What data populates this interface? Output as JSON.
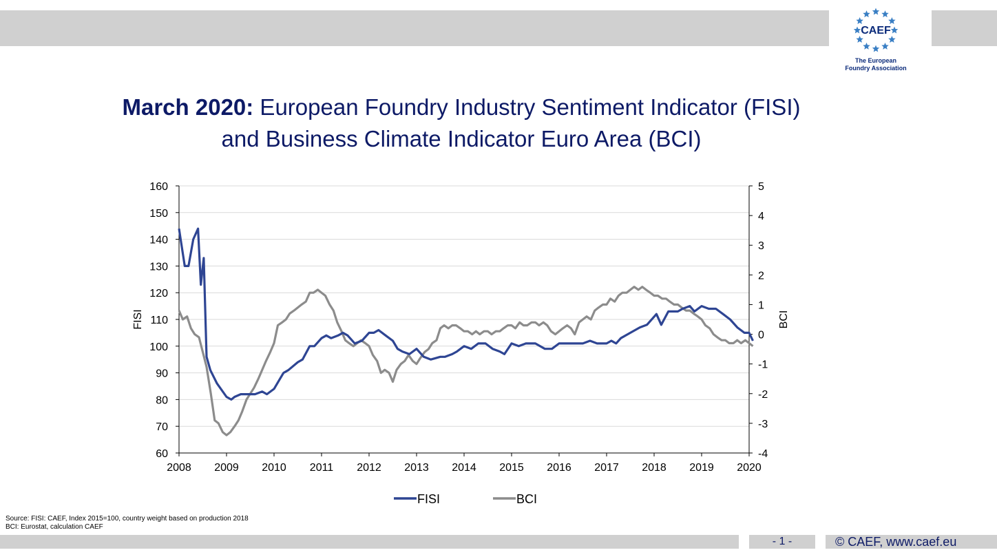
{
  "header": {
    "logo_text": "CAEF",
    "logo_subtitle_line1": "The European",
    "logo_subtitle_line2": "Foundry Association"
  },
  "title": {
    "bold": "March 2020:",
    "rest_line1": " European Foundry Industry Sentiment Indicator (FISI)",
    "line2": "and Business Climate Indicator Euro Area (BCI)"
  },
  "footer": {
    "source_line1": "Source: FISI: CAEF, Index 2015=100, country weight based on production 2018",
    "source_line2": "BCI: Eurostat, calculation CAEF",
    "page": "- 1 -",
    "copyright": "© CAEF, www.caef.eu"
  },
  "colors": {
    "fisi": "#2e4593",
    "bci": "#8c8c8c",
    "title": "#0d1a66",
    "bar": "#d0d0d0"
  },
  "chart_data": {
    "type": "line",
    "ylabel": "FISI",
    "y2label": "BCI",
    "ylim": [
      60,
      160
    ],
    "y2lim": [
      -4,
      5
    ],
    "xlim": [
      2008,
      2020
    ],
    "yticks": [
      "60",
      "70",
      "80",
      "90",
      "100",
      "110",
      "120",
      "130",
      "140",
      "150",
      "160"
    ],
    "y2ticks": [
      "-4",
      "-3",
      "-2",
      "-1",
      "0",
      "1",
      "2",
      "3",
      "4",
      "5"
    ],
    "xticks": [
      "2008",
      "2009",
      "2010",
      "2011",
      "2012",
      "2013",
      "2014",
      "2015",
      "2016",
      "2017",
      "2018",
      "2019",
      "2020"
    ],
    "grid": "horizontal",
    "legend": "bottom",
    "series": [
      {
        "name": "FISI",
        "axis": "left",
        "x": [
          2008.0,
          2008.12,
          2008.2,
          2008.3,
          2008.4,
          2008.46,
          2008.52,
          2008.58,
          2008.66,
          2008.8,
          2009.0,
          2009.1,
          2009.17,
          2009.3,
          2009.5,
          2009.6,
          2009.75,
          2009.85,
          2010.0,
          2010.1,
          2010.2,
          2010.3,
          2010.5,
          2010.6,
          2010.75,
          2010.85,
          2011.0,
          2011.1,
          2011.2,
          2011.35,
          2011.45,
          2011.55,
          2011.7,
          2011.85,
          2012.0,
          2012.1,
          2012.2,
          2012.35,
          2012.5,
          2012.6,
          2012.7,
          2012.85,
          2013.0,
          2013.15,
          2013.3,
          2013.5,
          2013.6,
          2013.75,
          2013.85,
          2014.0,
          2014.15,
          2014.3,
          2014.45,
          2014.6,
          2014.75,
          2014.85,
          2015.0,
          2015.15,
          2015.3,
          2015.5,
          2015.7,
          2015.85,
          2016.0,
          2016.15,
          2016.3,
          2016.5,
          2016.65,
          2016.8,
          2017.0,
          2017.1,
          2017.2,
          2017.3,
          2017.5,
          2017.7,
          2017.85,
          2018.0,
          2018.05,
          2018.15,
          2018.3,
          2018.5,
          2018.6,
          2018.75,
          2018.85,
          2019.0,
          2019.15,
          2019.3,
          2019.45,
          2019.6,
          2019.75,
          2019.9,
          2020.0,
          2020.08
        ],
        "values": [
          144,
          130,
          130,
          140,
          144,
          123,
          133,
          96,
          91,
          86,
          81,
          80,
          81,
          82,
          82,
          82,
          83,
          82,
          84,
          87,
          90,
          91,
          94,
          95,
          100,
          100,
          103,
          104,
          103,
          104,
          105,
          104,
          101,
          102,
          105,
          105,
          106,
          104,
          102,
          99,
          98,
          97,
          99,
          96,
          95,
          96,
          96,
          97,
          98,
          100,
          99,
          101,
          101,
          99,
          98,
          97,
          101,
          100,
          101,
          101,
          99,
          99,
          101,
          101,
          101,
          101,
          102,
          101,
          101,
          102,
          101,
          103,
          105,
          107,
          108,
          111,
          112,
          108,
          113,
          113,
          114,
          115,
          113,
          115,
          114,
          114,
          112,
          110,
          107,
          105,
          105,
          102
        ]
      },
      {
        "name": "BCI",
        "axis": "right",
        "x": [
          2008.0,
          2008.08,
          2008.17,
          2008.25,
          2008.33,
          2008.42,
          2008.5,
          2008.58,
          2008.67,
          2008.75,
          2008.83,
          2008.92,
          2009.0,
          2009.08,
          2009.17,
          2009.25,
          2009.33,
          2009.42,
          2009.5,
          2009.58,
          2009.67,
          2009.75,
          2009.83,
          2009.92,
          2010.0,
          2010.08,
          2010.17,
          2010.25,
          2010.33,
          2010.42,
          2010.5,
          2010.58,
          2010.67,
          2010.75,
          2010.83,
          2010.92,
          2011.0,
          2011.08,
          2011.17,
          2011.25,
          2011.33,
          2011.42,
          2011.5,
          2011.58,
          2011.67,
          2011.75,
          2011.83,
          2011.92,
          2012.0,
          2012.08,
          2012.17,
          2012.25,
          2012.33,
          2012.42,
          2012.5,
          2012.58,
          2012.67,
          2012.75,
          2012.83,
          2012.92,
          2013.0,
          2013.08,
          2013.17,
          2013.25,
          2013.33,
          2013.42,
          2013.5,
          2013.58,
          2013.67,
          2013.75,
          2013.83,
          2013.92,
          2014.0,
          2014.08,
          2014.17,
          2014.25,
          2014.33,
          2014.42,
          2014.5,
          2014.58,
          2014.67,
          2014.75,
          2014.83,
          2014.92,
          2015.0,
          2015.08,
          2015.17,
          2015.25,
          2015.33,
          2015.42,
          2015.5,
          2015.58,
          2015.67,
          2015.75,
          2015.83,
          2015.92,
          2016.0,
          2016.08,
          2016.17,
          2016.25,
          2016.33,
          2016.42,
          2016.5,
          2016.58,
          2016.67,
          2016.75,
          2016.83,
          2016.92,
          2017.0,
          2017.08,
          2017.17,
          2017.25,
          2017.33,
          2017.42,
          2017.5,
          2017.58,
          2017.67,
          2017.75,
          2017.83,
          2017.92,
          2018.0,
          2018.08,
          2018.17,
          2018.25,
          2018.33,
          2018.42,
          2018.5,
          2018.58,
          2018.67,
          2018.75,
          2018.83,
          2018.92,
          2019.0,
          2019.08,
          2019.17,
          2019.25,
          2019.33,
          2019.42,
          2019.5,
          2019.58,
          2019.67,
          2019.75,
          2019.83,
          2019.92,
          2020.0,
          2020.08
        ],
        "values": [
          0.8,
          0.5,
          0.6,
          0.2,
          0.0,
          -0.1,
          -0.6,
          -1.1,
          -2.0,
          -2.9,
          -3.0,
          -3.3,
          -3.4,
          -3.3,
          -3.1,
          -2.9,
          -2.6,
          -2.2,
          -2.0,
          -1.8,
          -1.5,
          -1.2,
          -0.9,
          -0.6,
          -0.3,
          0.3,
          0.4,
          0.5,
          0.7,
          0.8,
          0.9,
          1.0,
          1.1,
          1.4,
          1.4,
          1.5,
          1.4,
          1.3,
          1.0,
          0.8,
          0.4,
          0.1,
          -0.2,
          -0.3,
          -0.4,
          -0.3,
          -0.2,
          -0.3,
          -0.4,
          -0.7,
          -0.9,
          -1.3,
          -1.2,
          -1.3,
          -1.6,
          -1.2,
          -1.0,
          -0.9,
          -0.7,
          -0.9,
          -1.0,
          -0.8,
          -0.6,
          -0.5,
          -0.3,
          -0.2,
          0.2,
          0.3,
          0.2,
          0.3,
          0.3,
          0.2,
          0.1,
          0.1,
          0.0,
          0.1,
          0.0,
          0.1,
          0.1,
          0.0,
          0.1,
          0.1,
          0.2,
          0.3,
          0.3,
          0.2,
          0.4,
          0.3,
          0.3,
          0.4,
          0.4,
          0.3,
          0.4,
          0.3,
          0.1,
          0.0,
          0.1,
          0.2,
          0.3,
          0.2,
          0.0,
          0.4,
          0.5,
          0.6,
          0.5,
          0.8,
          0.9,
          1.0,
          1.0,
          1.2,
          1.1,
          1.3,
          1.4,
          1.4,
          1.5,
          1.6,
          1.5,
          1.6,
          1.5,
          1.4,
          1.3,
          1.3,
          1.2,
          1.2,
          1.1,
          1.0,
          1.0,
          0.9,
          0.8,
          0.8,
          0.7,
          0.6,
          0.5,
          0.3,
          0.2,
          0.0,
          -0.1,
          -0.2,
          -0.2,
          -0.3,
          -0.3,
          -0.2,
          -0.3,
          -0.2,
          -0.3,
          -0.4
        ]
      }
    ]
  }
}
